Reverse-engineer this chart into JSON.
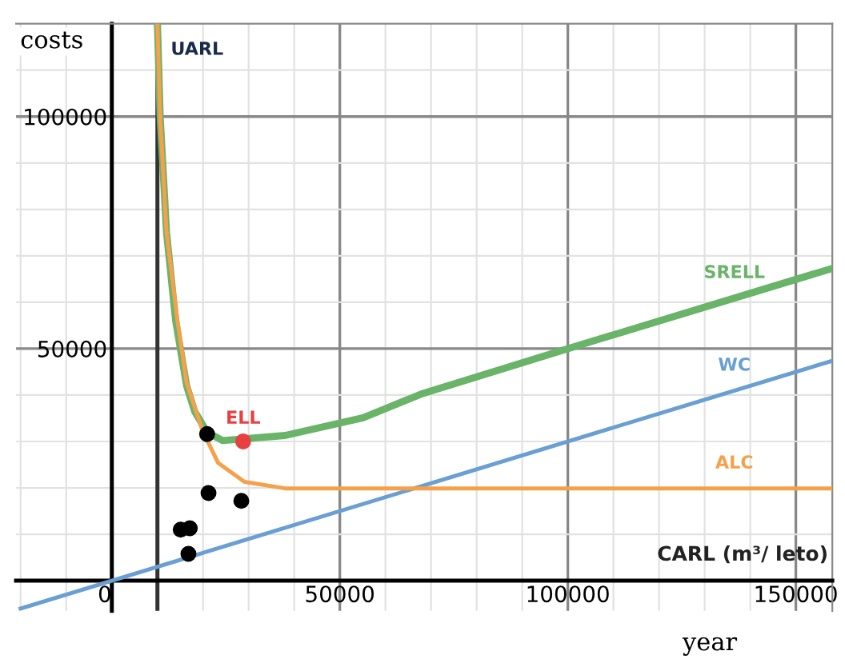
{
  "chart_data": {
    "type": "line",
    "ylabel": "costs",
    "xlabel": "year",
    "annotations": [
      "CARL (m³/ leto)"
    ],
    "xlim": [
      -21000,
      158000
    ],
    "ylim": [
      -6500,
      120000
    ],
    "xticks": [
      {
        "value": -20000,
        "label": null
      },
      {
        "value": -10000,
        "label": null
      },
      0,
      {
        "value": 10000,
        "label": null
      },
      {
        "value": 20000,
        "label": null
      },
      {
        "value": 30000,
        "label": null
      },
      {
        "value": 40000,
        "label": null
      },
      50000,
      {
        "value": 60000,
        "label": null
      },
      {
        "value": 70000,
        "label": null
      },
      {
        "value": 80000,
        "label": null
      },
      {
        "value": 90000,
        "label": null
      },
      100000,
      {
        "value": 110000,
        "label": null
      },
      {
        "value": 120000,
        "label": null
      },
      {
        "value": 130000,
        "label": null
      },
      {
        "value": 140000,
        "label": null
      },
      150000
    ],
    "yticks": [
      {
        "value": 0,
        "label": null
      },
      {
        "value": 10000,
        "label": null
      },
      {
        "value": 20000,
        "label": null
      },
      {
        "value": 30000,
        "label": null
      },
      {
        "value": 40000,
        "label": null
      },
      50000,
      {
        "value": 60000,
        "label": null
      },
      {
        "value": 70000,
        "label": null
      },
      {
        "value": 80000,
        "label": null
      },
      {
        "value": 90000,
        "label": null
      },
      100000,
      {
        "value": 110000,
        "label": null
      }
    ],
    "grid": true,
    "legend": false,
    "line_style": "solid",
    "ref_lines": [
      {
        "axis": "x",
        "value": 10000,
        "label": "UARL",
        "color": "#333333"
      }
    ],
    "series": [
      {
        "name": "SRELL",
        "color": "#6ab46a",
        "x": [
          10000,
          10600,
          12000,
          14000,
          16400,
          18200,
          20900,
          24300,
          38000,
          55100,
          67800,
          100000,
          158000
        ],
        "values": [
          120000,
          100000,
          75000,
          56000,
          42000,
          36400,
          32000,
          30200,
          31300,
          35100,
          40200,
          50000,
          67300
        ]
      },
      {
        "name": "WC",
        "color": "#6a9fd4",
        "x": [
          -20000,
          158000
        ],
        "values": [
          -6000,
          47400
        ]
      },
      {
        "name": "ALC",
        "color": "#f5a04a",
        "x": [
          10000,
          10600,
          12000,
          14400,
          16400,
          19900,
          23300,
          29100,
          38000,
          158000
        ],
        "values": [
          120000,
          100000,
          75000,
          56000,
          42600,
          32300,
          25400,
          21300,
          19900,
          19900
        ]
      },
      {
        "type": "scatter",
        "color": "#000000",
        "x": [
          20900,
          21200,
          28400,
          15100,
          17100,
          16800
        ],
        "values": [
          31600,
          18900,
          17200,
          11000,
          11300,
          5800
        ]
      },
      {
        "type": "scatter",
        "name": "ELL",
        "color": "#e84040",
        "x": [
          28800
        ],
        "values": [
          30000
        ]
      }
    ]
  }
}
